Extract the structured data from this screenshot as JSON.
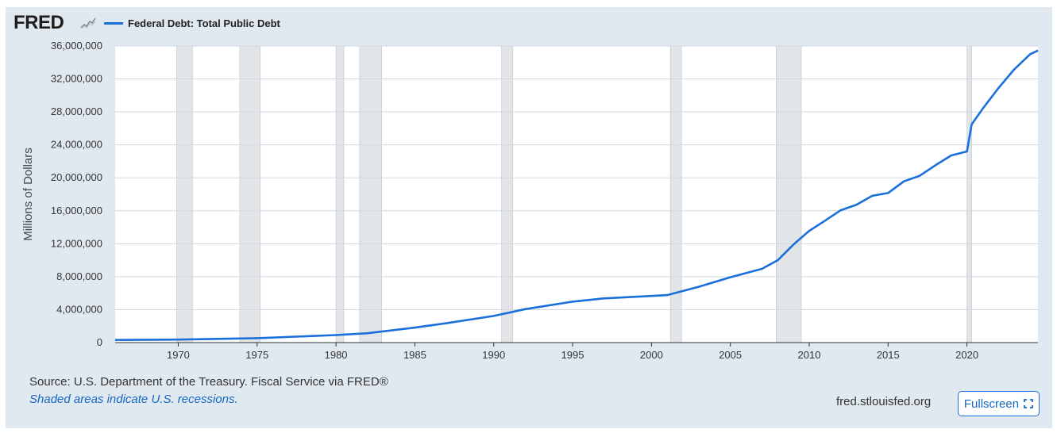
{
  "brand": {
    "logo_text": "FRED",
    "logo_mark": "®"
  },
  "legend": {
    "label": "Federal Debt: Total Public Debt",
    "color": "#1a6fdb"
  },
  "footer": {
    "source": "Source: U.S. Department of the Treasury. Fiscal Service via FRED®",
    "recession_note": "Shaded areas indicate U.S. recessions.",
    "site": "fred.stlouisfed.org",
    "fullscreen_label": "Fullscreen"
  },
  "icons": {
    "logo_chart": "mini-line-chart-icon",
    "fullscreen": "expand-corners-icon"
  },
  "colors": {
    "series": "#1a6fdb",
    "recession": "#e2e5e8",
    "background": "#e1e9f0",
    "link": "#1568c2"
  },
  "chart_data": {
    "type": "line",
    "title": "",
    "ylabel": "Millions of Dollars",
    "xlabel": "",
    "xlim": [
      1966.0,
      2024.5
    ],
    "ylim": [
      0,
      36000000
    ],
    "x_ticks": [
      1970,
      1975,
      1980,
      1985,
      1990,
      1995,
      2000,
      2005,
      2010,
      2015,
      2020
    ],
    "y_ticks": [
      0,
      4000000,
      8000000,
      12000000,
      16000000,
      20000000,
      24000000,
      28000000,
      32000000,
      36000000
    ],
    "y_tick_labels": [
      "0",
      "4,000,000",
      "8,000,000",
      "12,000,000",
      "16,000,000",
      "20,000,000",
      "24,000,000",
      "28,000,000",
      "32,000,000",
      "36,000,000"
    ],
    "grid": "horizontal",
    "recessions": [
      [
        1969.9,
        1970.9
      ],
      [
        1973.9,
        1975.2
      ],
      [
        1980.0,
        1980.5
      ],
      [
        1981.5,
        1982.9
      ],
      [
        1990.5,
        1991.2
      ],
      [
        2001.2,
        2001.9
      ],
      [
        2007.9,
        2009.5
      ],
      [
        2020.0,
        2020.3
      ]
    ],
    "series": [
      {
        "name": "Federal Debt: Total Public Debt",
        "x": [
          1966.0,
          1970.0,
          1975.0,
          1980.0,
          1982.0,
          1985.0,
          1987.0,
          1990.0,
          1992.0,
          1995.0,
          1997.0,
          2000.0,
          2001.0,
          2003.0,
          2005.0,
          2007.0,
          2008.0,
          2009.0,
          2010.0,
          2011.0,
          2012.0,
          2013.0,
          2014.0,
          2015.0,
          2016.0,
          2017.0,
          2018.0,
          2019.0,
          2020.0,
          2020.3,
          2021.0,
          2022.0,
          2023.0,
          2024.0,
          2024.5
        ],
        "y": [
          320000,
          370000,
          540000,
          910000,
          1140000,
          1820000,
          2350000,
          3230000,
          4060000,
          4970000,
          5370000,
          5660000,
          5770000,
          6780000,
          7930000,
          8950000,
          9990000,
          11900000,
          13560000,
          14790000,
          16070000,
          16740000,
          17820000,
          18150000,
          19570000,
          20240000,
          21520000,
          22720000,
          23200000,
          26500000,
          28400000,
          30900000,
          33170000,
          35000000,
          35450000
        ]
      }
    ]
  }
}
